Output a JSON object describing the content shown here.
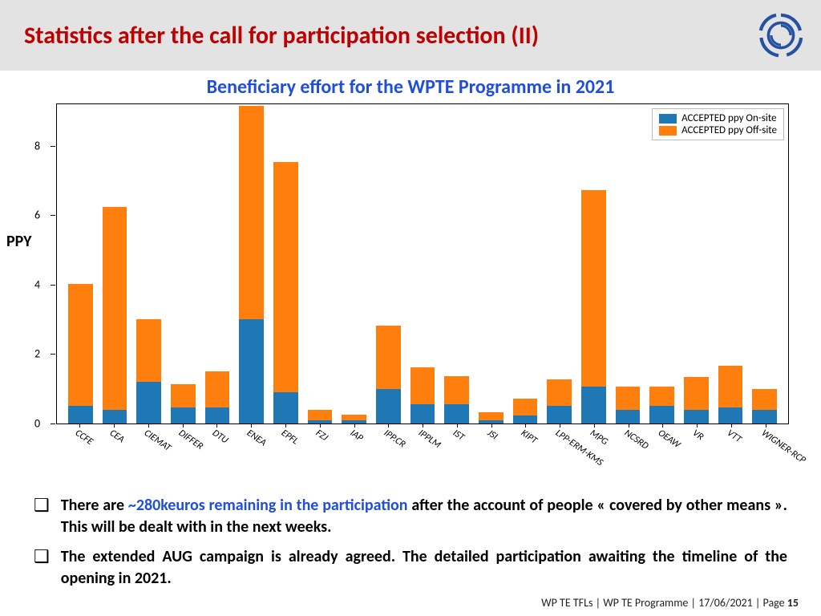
{
  "header": {
    "title": "Statistics after the call for participation selection (II)"
  },
  "chart": {
    "type": "stacked-bar",
    "title": "Beneficiary effort for the WPTE Programme in 2021",
    "ylabel": "PPY",
    "ylim": [
      0,
      9.2
    ],
    "yticks": [
      0,
      2,
      4,
      6,
      8
    ],
    "colors": {
      "onsite": "#1f77b4",
      "offsite": "#ff7f0e",
      "border": "#000000",
      "background": "#ffffff"
    },
    "legend": {
      "onsite": "ACCEPTED ppy On-site",
      "offsite": "ACCEPTED ppy Off-site"
    },
    "categories": [
      "CCFE",
      "CEA",
      "CIEMAT",
      "DIFFER",
      "DTU",
      "ENEA",
      "EPFL",
      "FZJ",
      "IAP",
      "IPP.CR",
      "IPPLM",
      "IST",
      "JSI",
      "KIPT",
      "LPP-ERM-KMS",
      "MPG",
      "NCSRD",
      "OEAW",
      "VR",
      "VTT",
      "WIGNER-RCP"
    ],
    "series": {
      "onsite": [
        0.5,
        0.4,
        1.2,
        0.45,
        0.45,
        3.0,
        0.9,
        0.1,
        0.1,
        1.0,
        0.55,
        0.55,
        0.1,
        0.22,
        0.5,
        1.05,
        0.4,
        0.5,
        0.38,
        0.45,
        0.4
      ],
      "offsite": [
        3.5,
        5.8,
        1.8,
        0.68,
        1.05,
        6.1,
        6.6,
        0.28,
        0.15,
        1.8,
        1.05,
        0.8,
        0.22,
        0.5,
        0.77,
        5.65,
        0.65,
        0.55,
        0.95,
        1.2,
        0.58
      ]
    },
    "font": {
      "tick_size": 13,
      "xlabel_size": 12,
      "title_size": 24
    }
  },
  "bullets": {
    "b1_pre": "There are ",
    "b1_blue": "~280keuros remaining in the participation",
    "b1_post": " after the account of people « covered by other means ». This will be dealt with in the next weeks.",
    "b2": " The extended AUG campaign is already agreed. The detailed participation awaiting the timeline of the opening in 2021."
  },
  "footer": {
    "left": "WP TE TFLs",
    "mid": "WP TE Programme",
    "date": "17/06/2021",
    "page_label": "Page ",
    "page_num": "15"
  }
}
